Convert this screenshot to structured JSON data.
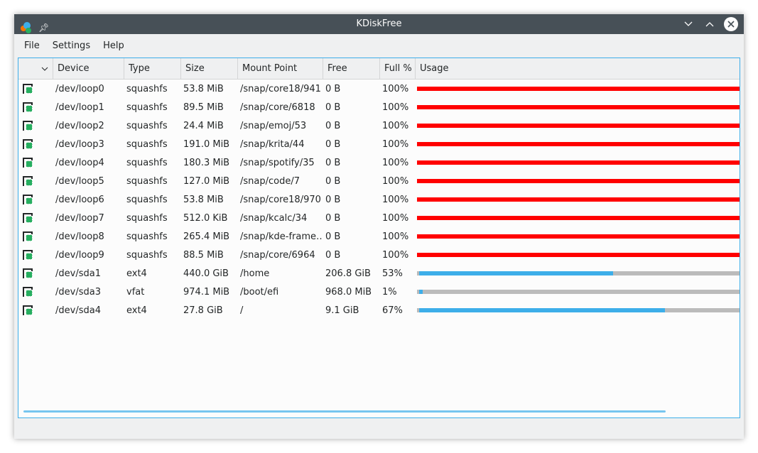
{
  "window": {
    "title": "KDiskFree",
    "icons": [
      "kdiskfree-app-icon",
      "pin-icon"
    ],
    "controls": [
      "minimize",
      "maximize",
      "close"
    ]
  },
  "menu": [
    "File",
    "Settings",
    "Help"
  ],
  "columns": [
    "Device",
    "Type",
    "Size",
    "Mount Point",
    "Free",
    "Full %",
    "Usage"
  ],
  "colors": {
    "accent": "#3daee9",
    "full": "#ff0000",
    "empty": "#bbbbbb"
  },
  "rows": [
    {
      "device": "/dev/loop0",
      "type": "squashfs",
      "size": "53.8 MiB",
      "mount": "/snap/core18/941",
      "free": "0 B",
      "full": "100%",
      "usage": 100
    },
    {
      "device": "/dev/loop1",
      "type": "squashfs",
      "size": "89.5 MiB",
      "mount": "/snap/core/6818",
      "free": "0 B",
      "full": "100%",
      "usage": 100
    },
    {
      "device": "/dev/loop2",
      "type": "squashfs",
      "size": "24.4 MiB",
      "mount": "/snap/emoj/53",
      "free": "0 B",
      "full": "100%",
      "usage": 100
    },
    {
      "device": "/dev/loop3",
      "type": "squashfs",
      "size": "191.0 MiB",
      "mount": "/snap/krita/44",
      "free": "0 B",
      "full": "100%",
      "usage": 100
    },
    {
      "device": "/dev/loop4",
      "type": "squashfs",
      "size": "180.3 MiB",
      "mount": "/snap/spotify/35",
      "free": "0 B",
      "full": "100%",
      "usage": 100
    },
    {
      "device": "/dev/loop5",
      "type": "squashfs",
      "size": "127.0 MiB",
      "mount": "/snap/code/7",
      "free": "0 B",
      "full": "100%",
      "usage": 100
    },
    {
      "device": "/dev/loop6",
      "type": "squashfs",
      "size": "53.8 MiB",
      "mount": "/snap/core18/970",
      "free": "0 B",
      "full": "100%",
      "usage": 100
    },
    {
      "device": "/dev/loop7",
      "type": "squashfs",
      "size": "512.0 KiB",
      "mount": "/snap/kcalc/34",
      "free": "0 B",
      "full": "100%",
      "usage": 100
    },
    {
      "device": "/dev/loop8",
      "type": "squashfs",
      "size": "265.4 MiB",
      "mount": "/snap/kde-frame…",
      "free": "0 B",
      "full": "100%",
      "usage": 100
    },
    {
      "device": "/dev/loop9",
      "type": "squashfs",
      "size": "88.5 MiB",
      "mount": "/snap/core/6964",
      "free": "0 B",
      "full": "100%",
      "usage": 100
    },
    {
      "device": "/dev/sda1",
      "type": "ext4",
      "size": "440.0 GiB",
      "mount": "/home",
      "free": "206.8 GiB",
      "full": "53%",
      "usage": 53
    },
    {
      "device": "/dev/sda3",
      "type": "vfat",
      "size": "974.1 MiB",
      "mount": "/boot/efi",
      "free": "968.0 MiB",
      "full": "1%",
      "usage": 1
    },
    {
      "device": "/dev/sda4",
      "type": "ext4",
      "size": "27.8 GiB",
      "mount": "/",
      "free": "9.1 GiB",
      "full": "67%",
      "usage": 67
    }
  ]
}
